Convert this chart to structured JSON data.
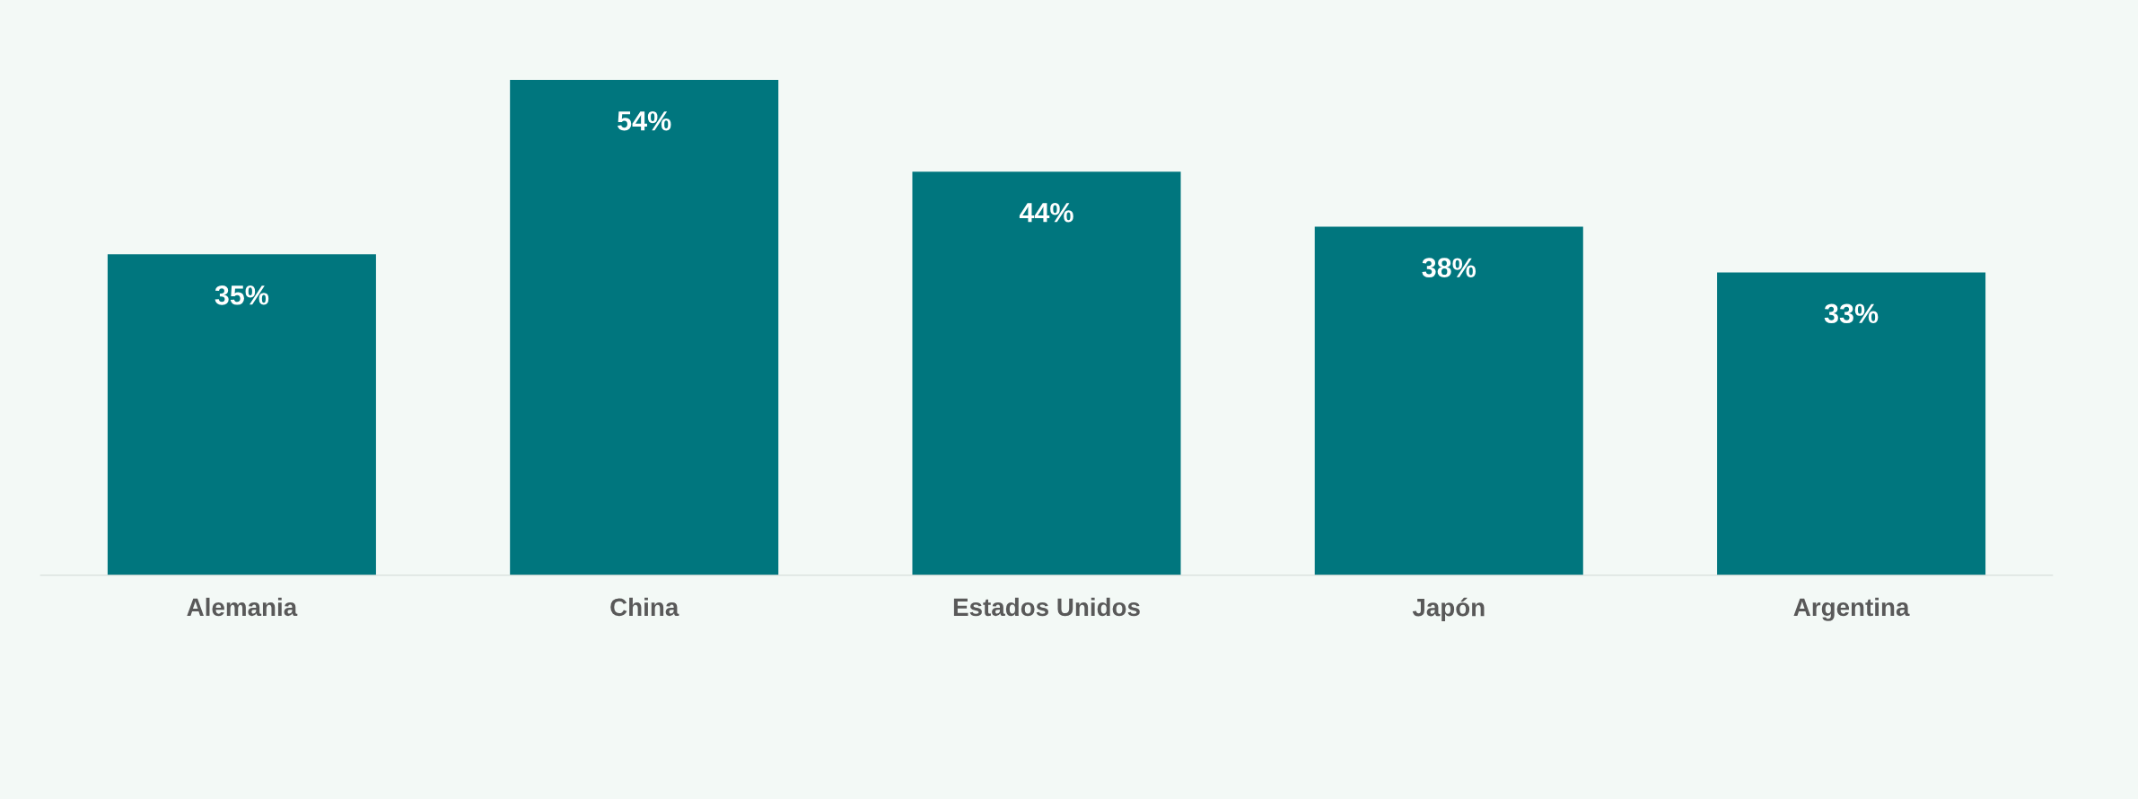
{
  "chart_data": {
    "type": "bar",
    "categories": [
      "Alemania",
      "China",
      "Estados Unidos",
      "Japón",
      "Argentina"
    ],
    "values": [
      35,
      54,
      44,
      38,
      33
    ],
    "value_labels": [
      "35%",
      "54%",
      "44%",
      "38%",
      "33%"
    ],
    "color": "#00767e",
    "tick_labels": "x",
    "grid": false
  }
}
